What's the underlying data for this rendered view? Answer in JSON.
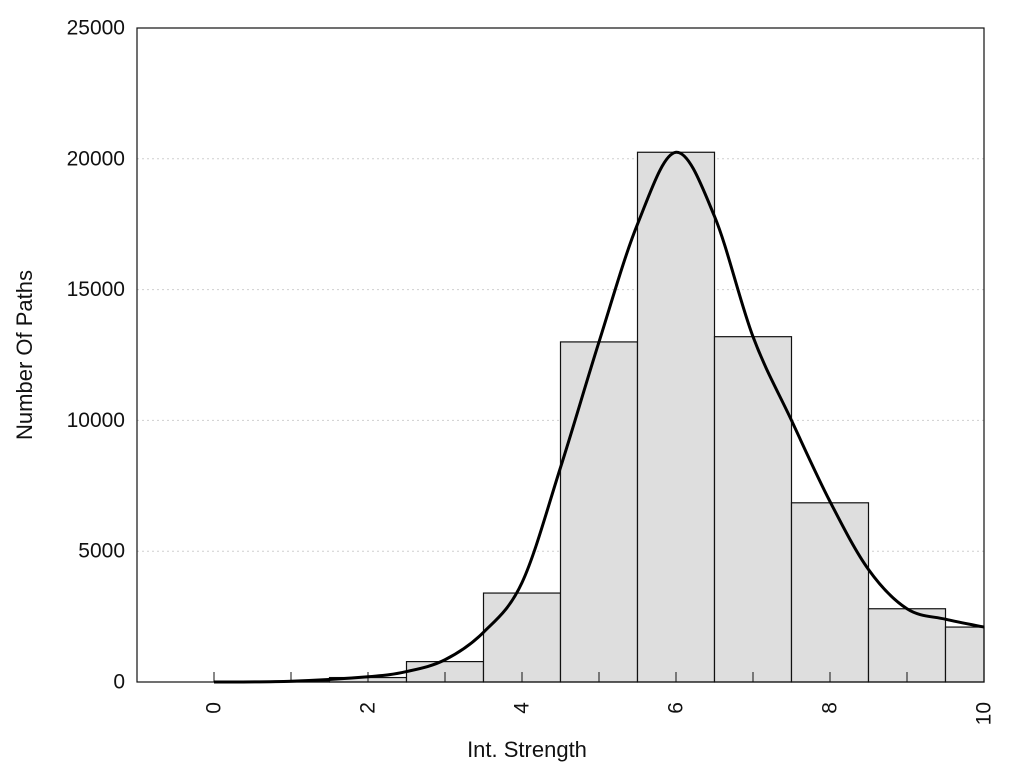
{
  "chart_data": {
    "type": "bar",
    "xlabel": "Int. Strength",
    "ylabel": "Number Of Paths",
    "xlim": [
      -1,
      10
    ],
    "ylim": [
      0,
      25000
    ],
    "x_ticks": [
      0,
      2,
      4,
      6,
      8,
      10
    ],
    "y_ticks": [
      0,
      5000,
      10000,
      15000,
      20000,
      25000
    ],
    "grid": "horizontal dotted",
    "bars": [
      {
        "x": 0,
        "value": 0
      },
      {
        "x": 1,
        "value": 20
      },
      {
        "x": 2,
        "value": 170
      },
      {
        "x": 3,
        "value": 780
      },
      {
        "x": 4,
        "value": 3400
      },
      {
        "x": 5,
        "value": 13000
      },
      {
        "x": 6,
        "value": 20250
      },
      {
        "x": 7,
        "value": 13200
      },
      {
        "x": 8,
        "value": 6850
      },
      {
        "x": 9,
        "value": 2800
      },
      {
        "x": 10,
        "value": 2100
      }
    ],
    "curve": {
      "x": [
        0,
        1,
        2,
        2.5,
        3,
        3.5,
        4,
        4.5,
        5,
        5.5,
        6,
        6.5,
        7,
        7.5,
        8,
        8.5,
        9,
        9.5,
        10
      ],
      "y": [
        0,
        30,
        200,
        400,
        850,
        1900,
        3800,
        8200,
        13000,
        17500,
        20250,
        17800,
        13200,
        10000,
        6900,
        4300,
        2800,
        2400,
        2100
      ]
    },
    "colors": {
      "bar_fill": "#dedede",
      "bar_stroke": "#111111",
      "curve": "#000000",
      "grid": "#cfcfcf"
    }
  }
}
